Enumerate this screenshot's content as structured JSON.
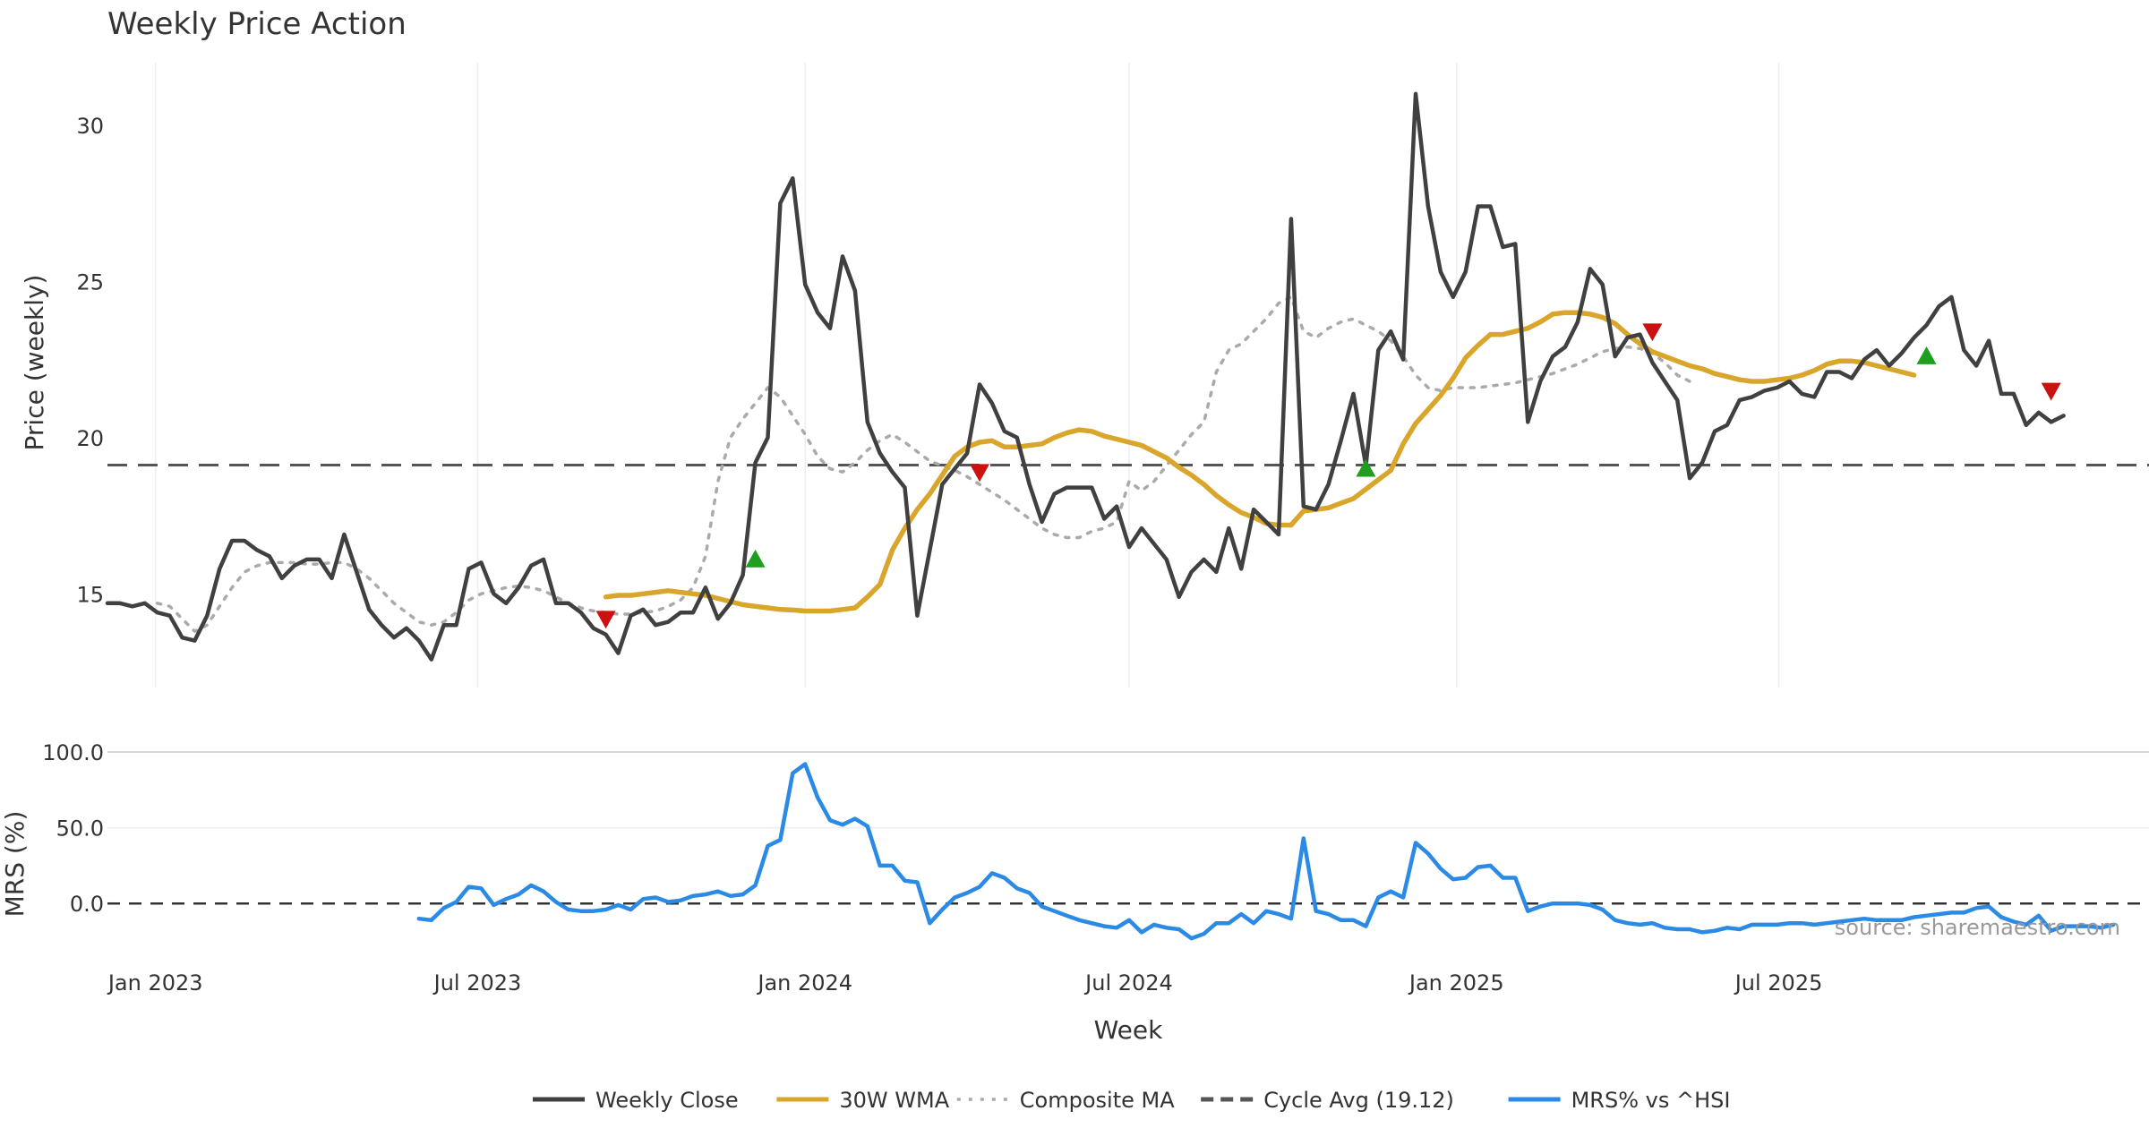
{
  "chart_data": [
    {
      "type": "line",
      "title": "Weekly Price Action",
      "ylabel": "Price (weekly)",
      "xlabel": "Week",
      "ylim": [
        12,
        32
      ],
      "yticks": [
        15,
        20,
        25,
        30
      ],
      "x_start": "2022-12-05",
      "x_step_days": 7,
      "x_range": [
        "2022-12-05",
        "2026-01-25"
      ],
      "xtick_dates": [
        "2023-01-01",
        "2023-07-01",
        "2024-01-01",
        "2024-07-01",
        "2025-01-01",
        "2025-07-01"
      ],
      "xtick_labels": [
        "Jan 2023",
        "Jul 2023",
        "Jan 2024",
        "Jul 2024",
        "Jan 2025",
        "Jul 2025"
      ],
      "grid": "vertical",
      "series": [
        {
          "name": "Weekly Close",
          "color": "#404040",
          "style": "solid",
          "offset": 0,
          "values": [
            14.7,
            14.7,
            14.6,
            14.7,
            14.4,
            14.3,
            13.6,
            13.5,
            14.3,
            15.8,
            16.7,
            16.7,
            16.4,
            16.2,
            15.5,
            15.9,
            16.1,
            16.1,
            15.5,
            16.9,
            15.7,
            14.5,
            14.0,
            13.6,
            13.9,
            13.5,
            12.9,
            14.0,
            14.0,
            15.8,
            16.0,
            15.0,
            14.7,
            15.2,
            15.9,
            16.1,
            14.7,
            14.7,
            14.4,
            13.9,
            13.7,
            13.1,
            14.3,
            14.5,
            14.0,
            14.1,
            14.4,
            14.4,
            15.2,
            14.2,
            14.7,
            15.6,
            19.2,
            20.0,
            27.5,
            28.3,
            24.9,
            24.0,
            23.5,
            25.8,
            24.7,
            20.5,
            19.5,
            18.9,
            18.4,
            14.3,
            16.4,
            18.5,
            19.0,
            19.5,
            21.7,
            21.1,
            20.2,
            20.0,
            18.5,
            17.3,
            18.2,
            18.4,
            18.4,
            18.4,
            17.4,
            17.8,
            16.5,
            17.1,
            16.6,
            16.1,
            14.9,
            15.7,
            16.1,
            15.7,
            17.1,
            15.8,
            17.7,
            17.3,
            16.9,
            27.0,
            17.8,
            17.7,
            18.5,
            19.9,
            21.4,
            19.1,
            22.8,
            23.4,
            22.5,
            31.0,
            27.4,
            25.3,
            24.5,
            25.3,
            27.4,
            27.4,
            26.1,
            26.2,
            20.5,
            21.8,
            22.6,
            22.9,
            23.7,
            25.4,
            24.9,
            22.6,
            23.2,
            23.3,
            22.4,
            21.8,
            21.2,
            18.7,
            19.2,
            20.2,
            20.4,
            21.2,
            21.3,
            21.5,
            21.6,
            21.8,
            21.4,
            21.3,
            22.1,
            22.1,
            21.9,
            22.5,
            22.8,
            22.3,
            22.7,
            23.2,
            23.6,
            24.2,
            24.5,
            22.8,
            22.3,
            23.1,
            21.4,
            21.4,
            20.4,
            20.8,
            20.5,
            20.7
          ]
        },
        {
          "name": "30W WMA",
          "color": "#d9a52b",
          "style": "solid",
          "offset": 40,
          "values": [
            14.9,
            14.95,
            14.95,
            15.0,
            15.05,
            15.1,
            15.05,
            15.0,
            14.95,
            14.85,
            14.75,
            14.65,
            14.6,
            14.55,
            14.5,
            14.48,
            14.45,
            14.45,
            14.45,
            14.5,
            14.55,
            14.9,
            15.3,
            16.4,
            17.1,
            17.7,
            18.2,
            18.8,
            19.4,
            19.7,
            19.85,
            19.9,
            19.7,
            19.7,
            19.75,
            19.8,
            20.0,
            20.15,
            20.25,
            20.2,
            20.05,
            19.95,
            19.85,
            19.75,
            19.55,
            19.35,
            19.05,
            18.8,
            18.5,
            18.15,
            17.85,
            17.6,
            17.45,
            17.25,
            17.2,
            17.2,
            17.65,
            17.7,
            17.75,
            17.9,
            18.05,
            18.35,
            18.65,
            18.95,
            19.8,
            20.45,
            20.9,
            21.35,
            21.9,
            22.55,
            22.95,
            23.3,
            23.3,
            23.4,
            23.5,
            23.7,
            23.95,
            24.0,
            24.0,
            23.95,
            23.85,
            23.65,
            23.3,
            23.0,
            22.75,
            22.6,
            22.45,
            22.3,
            22.2,
            22.05,
            21.95,
            21.85,
            21.8,
            21.8,
            21.85,
            21.9,
            22.0,
            22.15,
            22.35,
            22.45,
            22.45,
            22.4,
            22.3,
            22.2,
            22.1,
            22.0
          ]
        },
        {
          "name": "Composite MA",
          "color": "#aaaaaa",
          "style": "dotted",
          "offset": 4,
          "values": [
            14.7,
            14.6,
            14.2,
            13.8,
            14.0,
            14.6,
            15.2,
            15.7,
            15.9,
            16.0,
            16.0,
            16.0,
            15.95,
            15.95,
            16.0,
            16.0,
            15.8,
            15.5,
            15.1,
            14.7,
            14.4,
            14.1,
            14.0,
            14.1,
            14.4,
            14.8,
            15.0,
            15.1,
            15.2,
            15.25,
            15.2,
            15.1,
            14.9,
            14.7,
            14.55,
            14.45,
            14.4,
            14.35,
            14.35,
            14.4,
            14.45,
            14.6,
            14.8,
            15.2,
            16.2,
            18.6,
            20.0,
            20.6,
            21.1,
            21.6,
            21.3,
            20.7,
            20.1,
            19.4,
            19.0,
            18.9,
            19.2,
            19.6,
            19.9,
            20.1,
            19.85,
            19.55,
            19.25,
            19.1,
            18.95,
            18.75,
            18.5,
            18.25,
            18.0,
            17.7,
            17.4,
            17.1,
            16.9,
            16.8,
            16.8,
            17.0,
            17.1,
            17.3,
            18.6,
            18.3,
            18.6,
            19.1,
            19.6,
            20.1,
            20.5,
            22.1,
            22.8,
            23.0,
            23.4,
            23.8,
            24.3,
            24.5,
            23.4,
            23.2,
            23.5,
            23.7,
            23.8,
            23.6,
            23.4,
            23.1,
            22.6,
            22.0,
            21.6,
            21.5,
            21.6,
            21.6,
            21.6,
            21.65,
            21.7,
            21.75,
            21.85,
            21.95,
            22.05,
            22.2,
            22.35,
            22.55,
            22.75,
            22.85,
            22.9,
            22.85,
            22.7,
            22.4,
            22.0,
            21.8
          ]
        }
      ],
      "reference_lines": [
        {
          "name": "Cycle Avg (19.12)",
          "value": 19.12,
          "color": "#555555",
          "style": "dashed"
        }
      ],
      "markers": [
        {
          "type": "buy",
          "shape": "triangle-up",
          "color": "#1f9e1f",
          "index": 52,
          "value": 16.1
        },
        {
          "type": "buy",
          "shape": "triangle-up",
          "color": "#1f9e1f",
          "index": 101,
          "value": 19.0
        },
        {
          "type": "buy",
          "shape": "triangle-up",
          "color": "#1f9e1f",
          "index": 146,
          "value": 22.6
        },
        {
          "type": "sell",
          "shape": "triangle-down",
          "color": "#cc1111",
          "index": 40,
          "value": 14.2
        },
        {
          "type": "sell",
          "shape": "triangle-down",
          "color": "#cc1111",
          "index": 70,
          "value": 18.9
        },
        {
          "type": "sell",
          "shape": "triangle-down",
          "color": "#cc1111",
          "index": 124,
          "value": 23.4
        },
        {
          "type": "sell",
          "shape": "triangle-down",
          "color": "#cc1111",
          "index": 156,
          "value": 21.5
        }
      ]
    },
    {
      "type": "line",
      "title": "",
      "ylabel": "MRS (%)",
      "xlabel": "Week",
      "ylim": [
        -30,
        100
      ],
      "yticks": [
        100.0,
        50.0,
        0.0
      ],
      "ytick_labels": [
        "100.0",
        "50.0",
        "0.0"
      ],
      "series": [
        {
          "name": "MRS% vs ^HSI",
          "color": "#2b8ae6",
          "style": "solid",
          "offset": 25,
          "values": [
            -10,
            -11,
            -3,
            1,
            11,
            10,
            -1,
            3,
            6,
            12,
            8,
            1,
            -4,
            -5,
            -5,
            -4,
            -1,
            -4,
            3,
            4,
            1,
            2,
            5,
            6,
            8,
            5,
            6,
            12,
            38,
            42,
            86,
            92,
            70,
            55,
            52,
            56,
            51,
            25,
            25,
            15,
            14,
            -13,
            -4,
            4,
            7,
            11,
            20,
            17,
            10,
            7,
            -2,
            -5,
            -8,
            -11,
            -13,
            -15,
            -16,
            -11,
            -19,
            -14,
            -16,
            -17,
            -23,
            -20,
            -13,
            -13,
            -7,
            -13,
            -5,
            -7,
            -10,
            43,
            -5,
            -7,
            -11,
            -11,
            -15,
            4,
            8,
            4,
            40,
            33,
            23,
            16,
            17,
            24,
            25,
            17,
            17,
            -5,
            -2,
            0,
            0,
            0,
            -1,
            -4,
            -11,
            -13,
            -14,
            -13,
            -16,
            -17,
            -17,
            -19,
            -18,
            -16,
            -17,
            -14,
            -14,
            -14,
            -13,
            -13,
            -14,
            -13,
            -12,
            -11,
            -10,
            -11,
            -11,
            -11,
            -9,
            -8,
            -7,
            -6,
            -6,
            -3,
            -2,
            -9,
            -12,
            -14,
            -8,
            -18,
            -15,
            -15,
            -15,
            -16,
            -14
          ]
        }
      ],
      "reference_lines": [
        {
          "name": "zero",
          "value": 0,
          "color": "#333333",
          "style": "dashed"
        }
      ]
    }
  ],
  "legend": {
    "position": "bottom-center",
    "items": [
      {
        "label": "Weekly Close",
        "color": "#404040",
        "style": "solid"
      },
      {
        "label": "30W WMA",
        "color": "#d9a52b",
        "style": "solid"
      },
      {
        "label": "Composite MA",
        "color": "#aaaaaa",
        "style": "dotted"
      },
      {
        "label": "Cycle Avg (19.12)",
        "color": "#555555",
        "style": "dashed"
      },
      {
        "label": "MRS% vs ^HSI",
        "color": "#2b8ae6",
        "style": "solid"
      }
    ]
  },
  "watermark": "source: sharemaestro.com"
}
